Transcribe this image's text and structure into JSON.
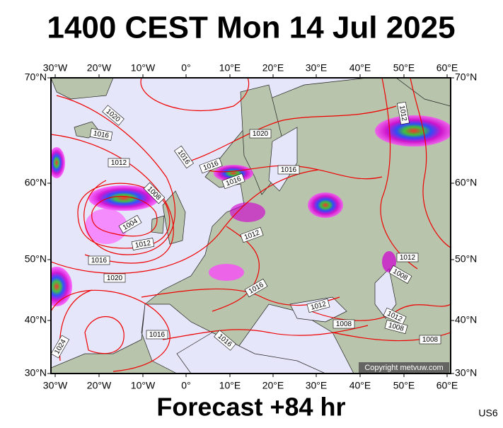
{
  "title": "1400 CEST Mon 14 Jul 2025",
  "lon_labels": [
    "30°W",
    "20°W",
    "10°W",
    "0°",
    "10°E",
    "20°E",
    "30°E",
    "40°E",
    "50°E",
    "60°E"
  ],
  "lat_labels": [
    "70°N",
    "60°N",
    "50°N",
    "40°N",
    "30°N"
  ],
  "isobar_labels": [
    "1020",
    "1016",
    "1012",
    "1016",
    "1016",
    "1020",
    "1016",
    "1016",
    "1012",
    "1008",
    "1004",
    "1012",
    "1016",
    "1020",
    "1012",
    "1016",
    "1012",
    "1012",
    "1008",
    "1008",
    "1012",
    "1008",
    "1008",
    "1016",
    "1016",
    "1024"
  ],
  "copyright": "Copyright metvuw.com",
  "footer": "Forecast +84 hr",
  "model": "US6"
}
